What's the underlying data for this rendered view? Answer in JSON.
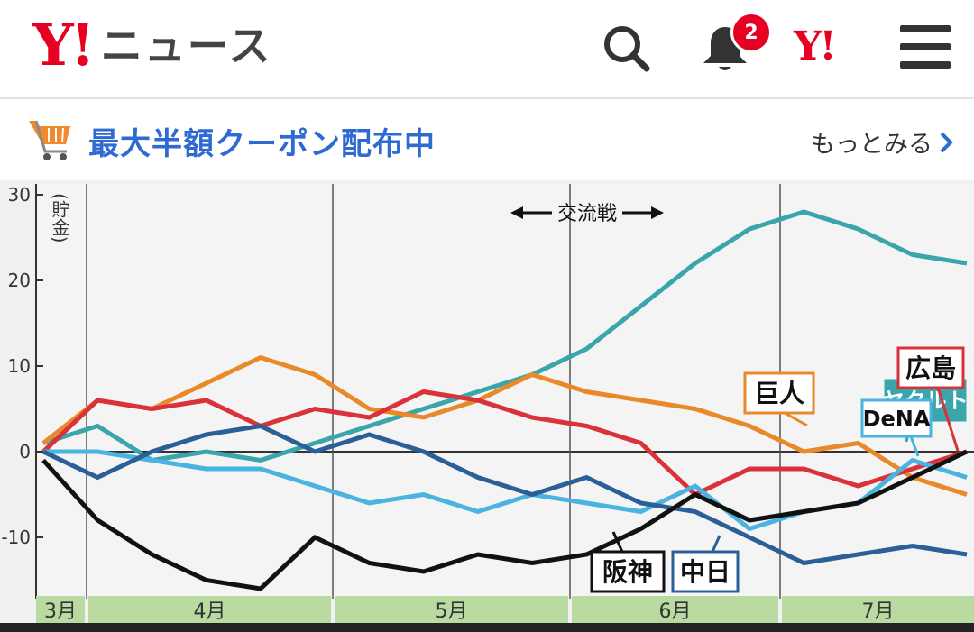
{
  "header": {
    "logo_mark": "Y!",
    "logo_text": "ニュース",
    "notification_count": "2",
    "brand_mark": "Y!"
  },
  "promo": {
    "title": "最大半額クーポン配布中",
    "more_label": "もっとみる"
  },
  "chart_data": {
    "type": "line",
    "ylabel": "(貯金)",
    "annotation": "交流戦",
    "ylim": [
      -16,
      31
    ],
    "yticks": [
      30,
      20,
      10,
      0,
      -10
    ],
    "months": [
      "3月",
      "4月",
      "5月",
      "6月",
      "7月"
    ],
    "x": [
      0,
      6,
      12,
      18,
      24,
      30,
      36,
      42,
      48,
      54,
      60,
      66,
      72,
      78,
      84,
      90,
      96,
      102
    ],
    "series": [
      {
        "name": "ヤクルト",
        "color": "#3aa6ac",
        "values": [
          1,
          3,
          -1,
          0,
          -1,
          1,
          3,
          5,
          7,
          9,
          12,
          17,
          22,
          26,
          28,
          26,
          23,
          22
        ]
      },
      {
        "name": "巨人",
        "color": "#e8892a",
        "values": [
          1,
          6,
          5,
          8,
          11,
          9,
          5,
          4,
          6,
          9,
          7,
          6,
          5,
          3,
          0,
          1,
          -3,
          -5
        ]
      },
      {
        "name": "広島",
        "color": "#d9323a",
        "values": [
          0,
          6,
          5,
          6,
          3,
          5,
          4,
          7,
          6,
          4,
          3,
          1,
          -5,
          -2,
          -2,
          -4,
          -2,
          0
        ]
      },
      {
        "name": "DeNA",
        "color": "#4ab3e0",
        "values": [
          0,
          0,
          -1,
          -2,
          -2,
          -4,
          -6,
          -5,
          -7,
          -5,
          -6,
          -7,
          -4,
          -9,
          -7,
          -6,
          -1,
          -3
        ]
      },
      {
        "name": "中日",
        "color": "#2b5f97",
        "values": [
          0,
          -3,
          0,
          2,
          3,
          0,
          2,
          0,
          -3,
          -5,
          -3,
          -6,
          -7,
          -10,
          -13,
          -12,
          -11,
          -12
        ]
      },
      {
        "name": "阪神",
        "color": "#111111",
        "values": [
          -1,
          -8,
          -12,
          -15,
          -16,
          -10,
          -13,
          -14,
          -12,
          -13,
          -12,
          -9,
          -5,
          -8,
          -7,
          -6,
          -3,
          0
        ]
      }
    ]
  }
}
